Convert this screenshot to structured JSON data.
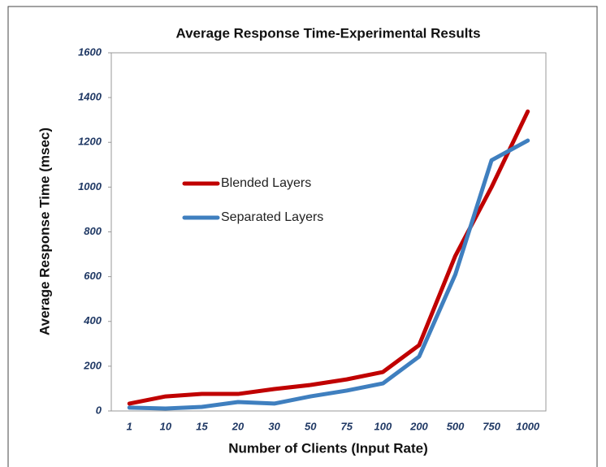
{
  "chart_data": {
    "type": "line",
    "title": "Average Response Time-Experimental Results",
    "x_label": "Number of Clients (Input Rate)",
    "y_label": "Average Response Time (msec)",
    "categories": [
      "1",
      "10",
      "15",
      "20",
      "30",
      "50",
      "75",
      "100",
      "200",
      "500",
      "750",
      "1000"
    ],
    "series": [
      {
        "name": "Blended Layers",
        "color": "#c00000",
        "values": [
          33,
          65,
          76,
          76,
          98,
          116,
          141,
          174,
          294,
          693,
          1000,
          1338
        ]
      },
      {
        "name": "Separated Layers",
        "color": "#3f7fbf",
        "values": [
          15,
          11,
          18,
          40,
          33,
          65,
          91,
          123,
          243,
          610,
          1120,
          1208
        ]
      }
    ],
    "ylim": [
      0,
      1600
    ],
    "yticks": [
      0,
      200,
      400,
      600,
      800,
      1000,
      1200,
      1400,
      1600
    ],
    "grid": false
  }
}
